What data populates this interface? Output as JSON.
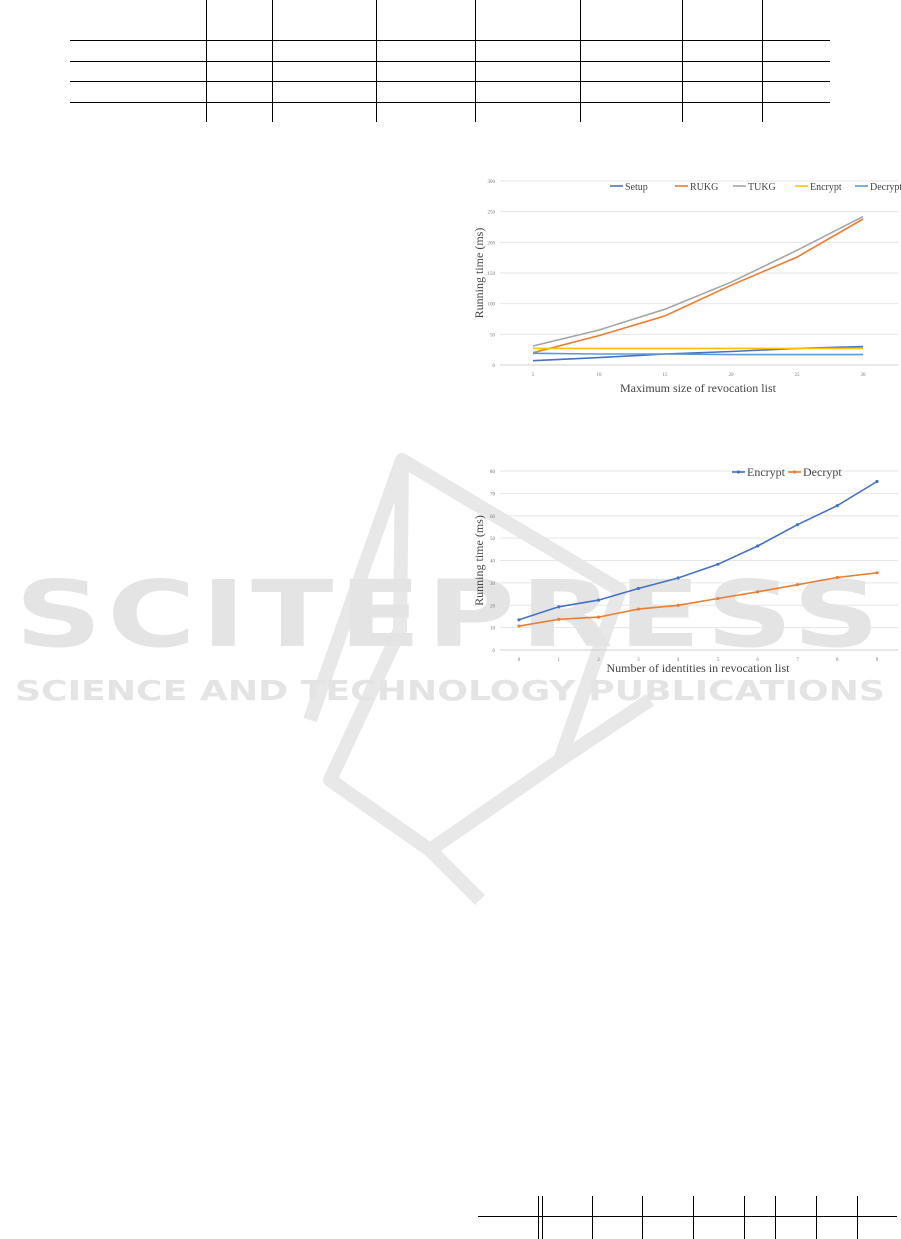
{
  "watermark": {
    "main": "SCITEPRESS",
    "sub": "SCIENCE AND TECHNOLOGY PUBLICATIONS",
    "color": "#e4e4e4"
  },
  "chart_data": [
    {
      "type": "line",
      "title": "",
      "xlabel": "Maximum size of revocation list",
      "ylabel": "Running time (ms)",
      "x": [
        5,
        10,
        15,
        20,
        25,
        30
      ],
      "xticks": [
        "5",
        "10",
        "15",
        "20",
        "25",
        "30"
      ],
      "ylim": [
        0,
        300
      ],
      "yticks": [
        "0",
        "50",
        "100",
        "150",
        "200",
        "250",
        "300"
      ],
      "grid": true,
      "legend": "top-right",
      "markers": false,
      "series": [
        {
          "name": "Setup",
          "color": "#4472c4",
          "values": [
            7,
            12,
            18,
            22,
            27,
            30
          ]
        },
        {
          "name": "RUKG",
          "color": "#ed7d31",
          "values": [
            20,
            48,
            80,
            130,
            176,
            238
          ]
        },
        {
          "name": "TUKG",
          "color": "#a5a5a5",
          "values": [
            31,
            57,
            91,
            135,
            187,
            242
          ]
        },
        {
          "name": "Encrypt",
          "color": "#ffc000",
          "values": [
            27,
            27,
            27,
            27,
            27,
            27
          ]
        },
        {
          "name": "Decrypt",
          "color": "#5b9bd5",
          "values": [
            19,
            18,
            18,
            17,
            17,
            17
          ]
        }
      ]
    },
    {
      "type": "line",
      "title": "",
      "xlabel": "Number of identities in revocation list",
      "ylabel": "Running time (ms)",
      "x": [
        0,
        1,
        2,
        3,
        4,
        5,
        6,
        7,
        8,
        9
      ],
      "xticks": [
        "0",
        "1",
        "2",
        "3",
        "4",
        "5",
        "6",
        "7",
        "8",
        "9"
      ],
      "ylim": [
        0,
        80
      ],
      "yticks": [
        "0",
        "10",
        "20",
        "30",
        "40",
        "50",
        "60",
        "70",
        "80"
      ],
      "grid": true,
      "legend": "top-right",
      "markers": true,
      "series": [
        {
          "name": "Encrypt",
          "color": "#4472c4",
          "values": [
            13.5,
            19.3,
            22.3,
            27.5,
            32.2,
            38.3,
            46.5,
            56,
            64.5,
            75.3
          ]
        },
        {
          "name": "Decrypt",
          "color": "#ed7d31",
          "values": [
            10.7,
            13.7,
            14.7,
            18.3,
            20,
            23,
            26,
            29.2,
            32.4,
            34.5
          ]
        }
      ]
    }
  ]
}
